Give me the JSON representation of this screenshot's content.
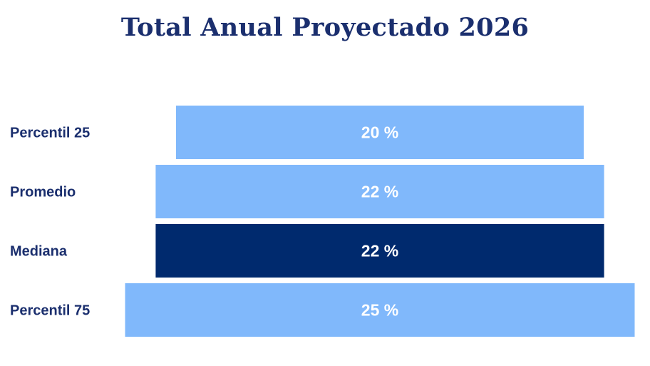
{
  "chart_data": {
    "type": "bar",
    "orientation": "horizontal",
    "layout": "funnel-centered",
    "title": "Total Anual Proyectado 2026",
    "categories": [
      "Percentil 25",
      "Promedio",
      "Mediana",
      "Percentil 75"
    ],
    "values": [
      20,
      22,
      22,
      25
    ],
    "value_labels": [
      "20 %",
      "22 %",
      "22 %",
      "25 %"
    ],
    "unit": "%",
    "colors": [
      "#80b8fb",
      "#80b8fb",
      "#002a6e",
      "#80b8fb"
    ],
    "highlight_category": "Mediana",
    "grid": false,
    "legend": "none"
  }
}
